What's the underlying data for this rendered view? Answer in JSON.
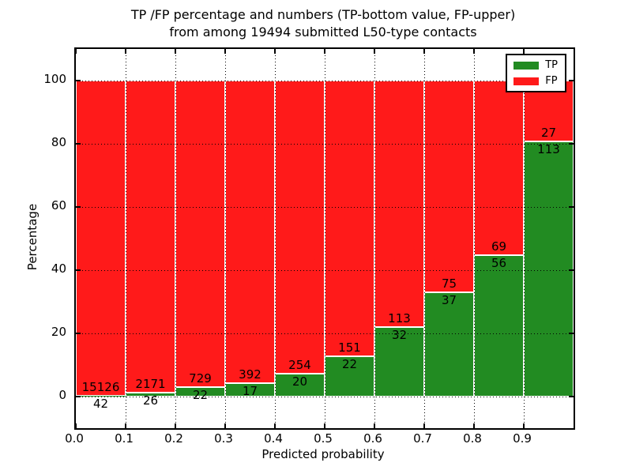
{
  "figure": {
    "title_line1": "TP /FP percentage and numbers (TP-bottom value, FP-upper)",
    "title_line2": "from among 19494 submitted L50-type contacts"
  },
  "chart_data": {
    "type": "bar",
    "subtype": "stacked-percentage",
    "title": "TP /FP percentage and numbers (TP-bottom value, FP-upper) from among 19494 submitted L50-type contacts",
    "xlabel": "Predicted probability",
    "ylabel": "Percentage",
    "total_contacts": 19494,
    "xlim": [
      0.0,
      1.0
    ],
    "ylim": [
      -10,
      110
    ],
    "bin_width": 0.1,
    "grid": true,
    "x_tick_labels": [
      "0.0",
      "0.1",
      "0.2",
      "0.3",
      "0.4",
      "0.5",
      "0.6",
      "0.7",
      "0.8",
      "0.9"
    ],
    "y_tick_values": [
      0,
      20,
      40,
      60,
      80,
      100
    ],
    "categories": [
      "0.0-0.1",
      "0.1-0.2",
      "0.2-0.3",
      "0.3-0.4",
      "0.4-0.5",
      "0.5-0.6",
      "0.6-0.7",
      "0.7-0.8",
      "0.8-0.9",
      "0.9-1.0"
    ],
    "series": [
      {
        "name": "TP",
        "color": "#228B22",
        "position": "bottom",
        "counts": [
          42,
          26,
          22,
          17,
          20,
          22,
          32,
          37,
          56,
          113
        ]
      },
      {
        "name": "FP",
        "color": "#ff1a1a",
        "position": "top",
        "counts": [
          15126,
          2171,
          729,
          392,
          254,
          151,
          113,
          75,
          69,
          27
        ]
      }
    ],
    "bar_edge_color": "#ffffff",
    "legend": {
      "position": "upper right",
      "entries": [
        "TP",
        "FP"
      ]
    }
  }
}
